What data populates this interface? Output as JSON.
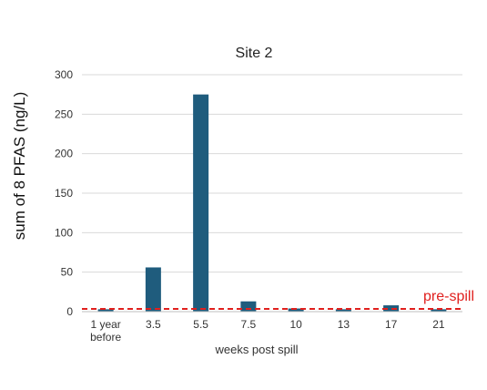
{
  "chart_data": {
    "type": "bar",
    "title": "Site 2",
    "xlabel": "weeks post spill",
    "ylabel": "sum of 8 PFAS (ng/L)",
    "categories": [
      [
        "1 year",
        "before"
      ],
      "3.5",
      "5.5",
      "7.5",
      "10",
      "13",
      "17",
      "21"
    ],
    "values": [
      3,
      56,
      275,
      13,
      4,
      3,
      8,
      3
    ],
    "ylim": [
      0,
      300
    ],
    "yticks": [
      0,
      50,
      100,
      150,
      200,
      250,
      300
    ],
    "grid": true,
    "bar_color": "#1f5c7d",
    "reference_line": {
      "label": "pre-spill",
      "value": 3.5,
      "color": "#e0201e",
      "style": "dashed"
    }
  }
}
